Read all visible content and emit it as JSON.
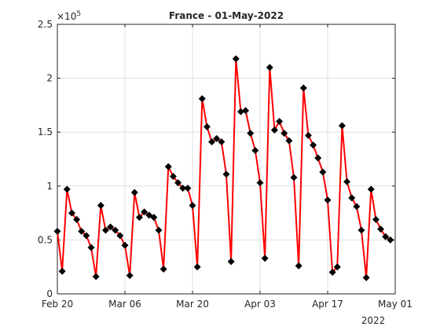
{
  "chart_data": {
    "type": "line",
    "title": "France - 01-May-2022",
    "y_multiplier": {
      "base": "×10",
      "exponent": 5
    },
    "x_year_label": "2022",
    "x": [
      "2022-02-20",
      "2022-02-21",
      "2022-02-22",
      "2022-02-23",
      "2022-02-24",
      "2022-02-25",
      "2022-02-26",
      "2022-02-27",
      "2022-02-28",
      "2022-03-01",
      "2022-03-02",
      "2022-03-03",
      "2022-03-04",
      "2022-03-05",
      "2022-03-06",
      "2022-03-07",
      "2022-03-08",
      "2022-03-09",
      "2022-03-10",
      "2022-03-11",
      "2022-03-12",
      "2022-03-13",
      "2022-03-14",
      "2022-03-15",
      "2022-03-16",
      "2022-03-17",
      "2022-03-18",
      "2022-03-19",
      "2022-03-20",
      "2022-03-21",
      "2022-03-22",
      "2022-03-23",
      "2022-03-24",
      "2022-03-25",
      "2022-03-26",
      "2022-03-27",
      "2022-03-28",
      "2022-03-29",
      "2022-03-30",
      "2022-03-31",
      "2022-04-01",
      "2022-04-02",
      "2022-04-03",
      "2022-04-04",
      "2022-04-05",
      "2022-04-06",
      "2022-04-07",
      "2022-04-08",
      "2022-04-09",
      "2022-04-10",
      "2022-04-11",
      "2022-04-12",
      "2022-04-13",
      "2022-04-14",
      "2022-04-15",
      "2022-04-16",
      "2022-04-17",
      "2022-04-18",
      "2022-04-19",
      "2022-04-20",
      "2022-04-21",
      "2022-04-22",
      "2022-04-23",
      "2022-04-24",
      "2022-04-25",
      "2022-04-26",
      "2022-04-27",
      "2022-04-28",
      "2022-04-29",
      "2022-04-30"
    ],
    "series": [
      {
        "color": "#ff0000",
        "marker_color": "#000000",
        "values": [
          0.58,
          0.21,
          0.97,
          0.75,
          0.69,
          0.58,
          0.54,
          0.43,
          0.16,
          0.82,
          0.59,
          0.62,
          0.59,
          0.54,
          0.45,
          0.17,
          0.94,
          0.71,
          0.76,
          0.73,
          0.71,
          0.59,
          0.23,
          1.18,
          1.09,
          1.03,
          0.98,
          0.98,
          0.82,
          0.25,
          1.81,
          1.55,
          1.41,
          1.44,
          1.41,
          1.11,
          0.3,
          2.18,
          1.69,
          1.7,
          1.49,
          1.33,
          1.03,
          0.33,
          2.1,
          1.52,
          1.6,
          1.49,
          1.42,
          1.08,
          0.26,
          1.91,
          1.47,
          1.38,
          1.26,
          1.13,
          0.87,
          0.2,
          0.25,
          1.56,
          1.04,
          0.89,
          0.81,
          0.59,
          0.15,
          0.97,
          0.69,
          0.6,
          0.53,
          0.5
        ]
      }
    ],
    "xlim": [
      "2022-02-20",
      "2022-05-01"
    ],
    "xticks": [
      {
        "value": "2022-02-20",
        "label": "Feb 20"
      },
      {
        "value": "2022-03-06",
        "label": "Mar 06"
      },
      {
        "value": "2022-03-20",
        "label": "Mar 20"
      },
      {
        "value": "2022-04-03",
        "label": "Apr 03"
      },
      {
        "value": "2022-04-17",
        "label": "Apr 17"
      },
      {
        "value": "2022-05-01",
        "label": "May 01"
      }
    ],
    "ylim": [
      0,
      2.5
    ],
    "yticks": [
      0,
      0.5,
      1,
      1.5,
      2,
      2.5
    ],
    "grid": true
  }
}
